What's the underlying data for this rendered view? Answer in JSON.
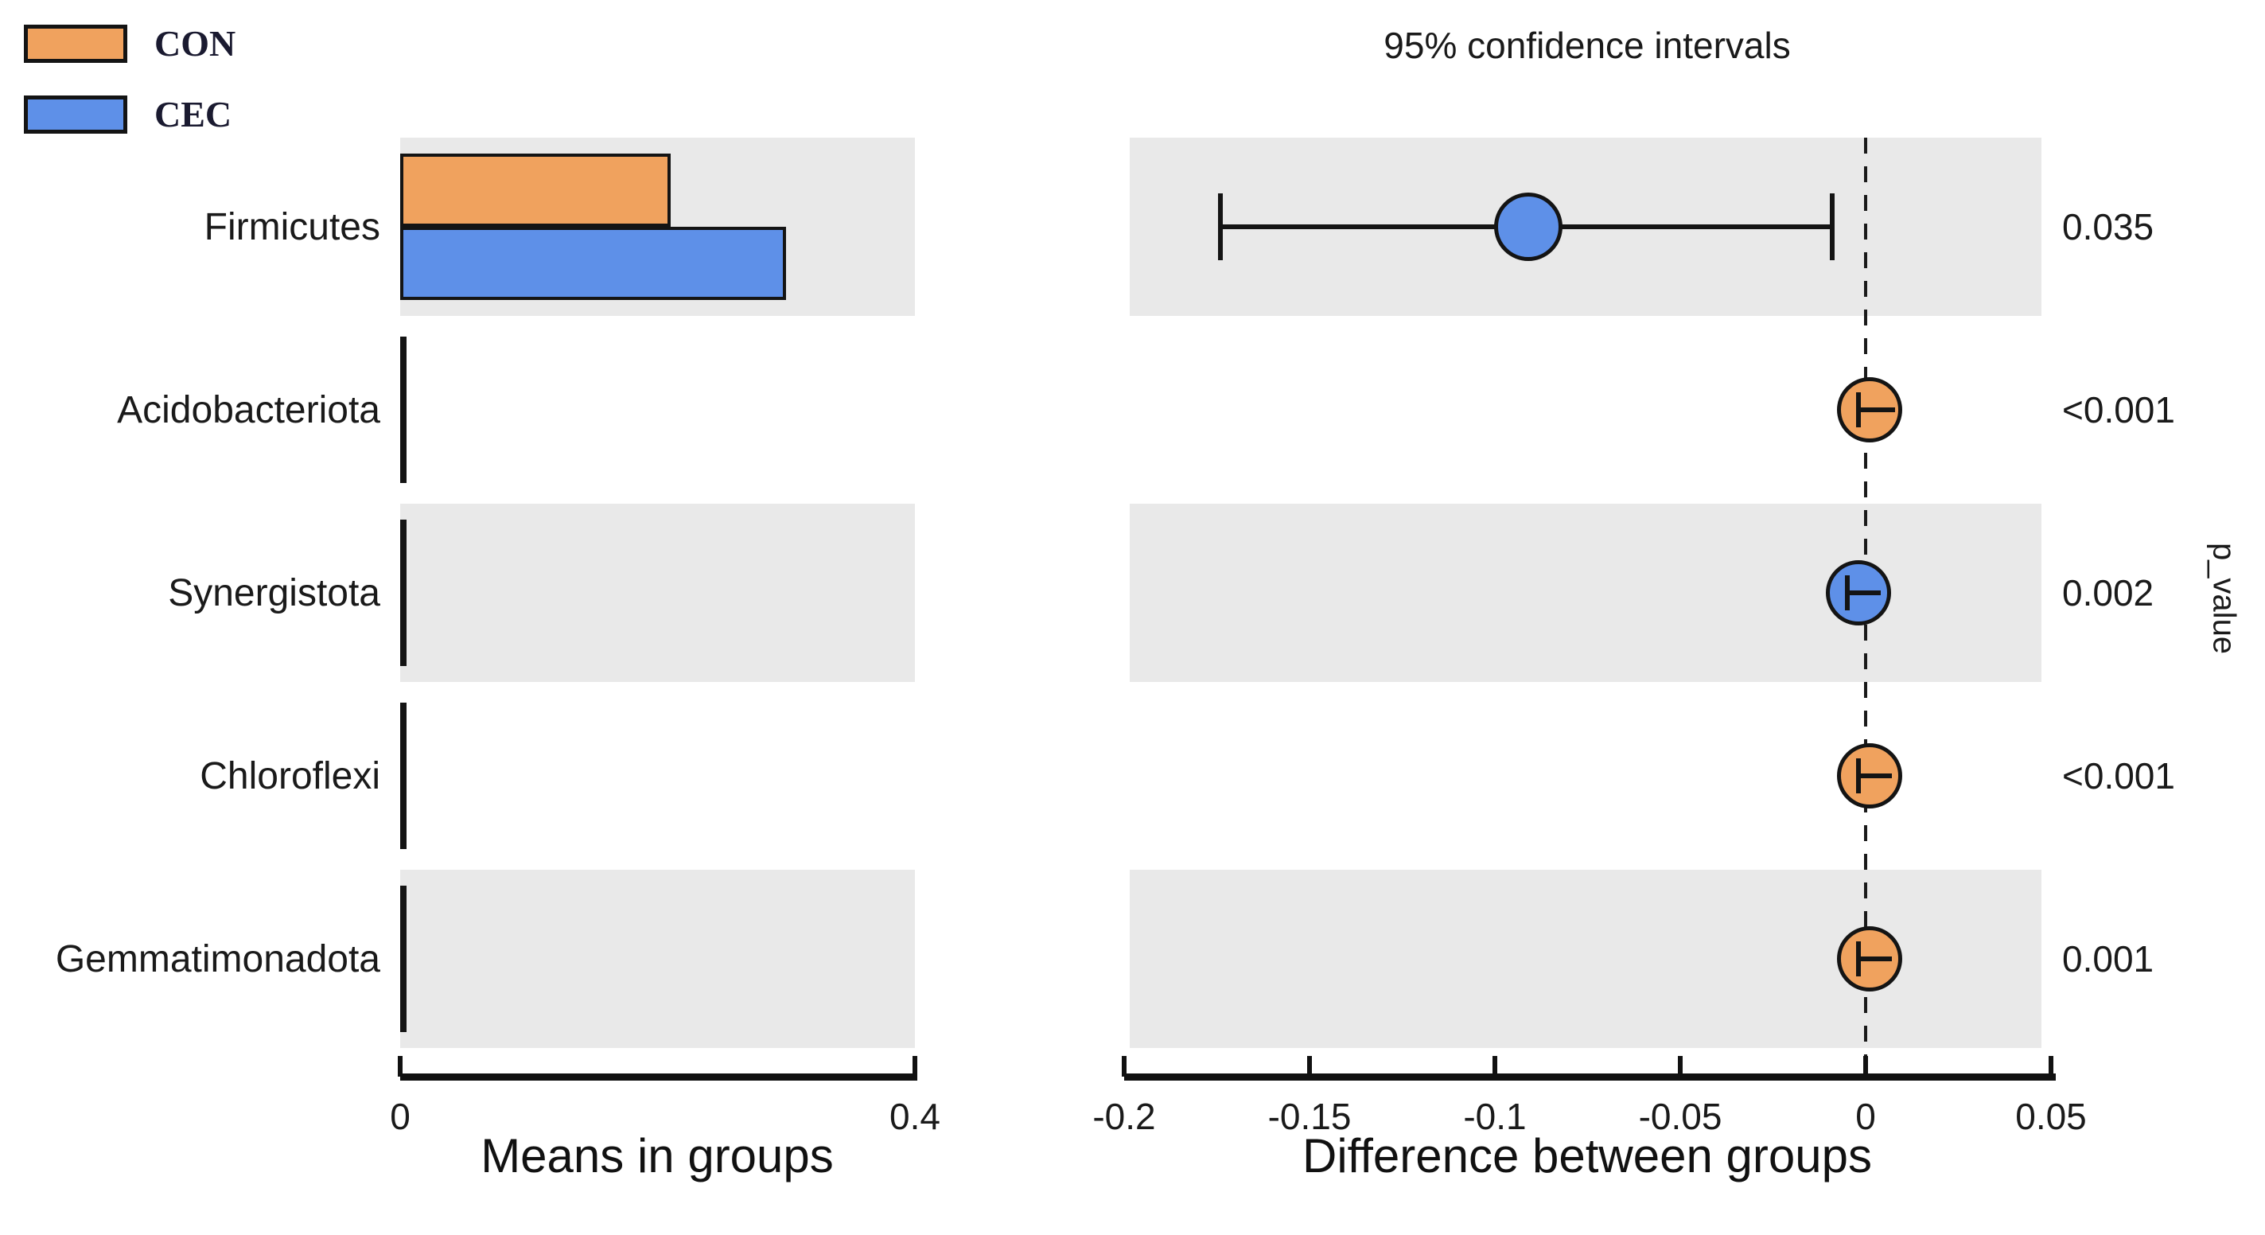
{
  "legend": {
    "items": [
      {
        "label": "CON",
        "color": "#F0A25E"
      },
      {
        "label": "CEC",
        "color": "#5E90E8"
      }
    ]
  },
  "colors": {
    "con_orange": "#F0A25E",
    "cec_blue": "#5E90E8",
    "band_gray": "#E9E9E9",
    "stroke_black": "#141414"
  },
  "chart_data": {
    "type": "extended-error-bar",
    "groups": [
      "CON",
      "CEC"
    ],
    "left_panel": {
      "xlabel": "Means in groups",
      "xlim": [
        0,
        0.4
      ],
      "ticks": [
        {
          "value": 0,
          "label": "0"
        },
        {
          "value": 0.4,
          "label": "0.4"
        }
      ]
    },
    "right_panel": {
      "title": "95% confidence intervals",
      "xlabel": "Difference between groups",
      "xlim": [
        -0.2,
        0.05
      ],
      "zero_line": 0,
      "ticks": [
        {
          "value": -0.2,
          "label": "-0.2"
        },
        {
          "value": -0.15,
          "label": "-0.15"
        },
        {
          "value": -0.1,
          "label": "-0.1"
        },
        {
          "value": -0.05,
          "label": "-0.05"
        },
        {
          "value": 0,
          "label": "0"
        },
        {
          "value": 0.05,
          "label": "0.05"
        }
      ]
    },
    "p_value_label": "p_value",
    "rows": [
      {
        "taxon": "Firmicutes",
        "means": {
          "CON": 0.21,
          "CEC": 0.3
        },
        "difference": -0.091,
        "ci": [
          -0.174,
          -0.009
        ],
        "enriched": "CEC",
        "p_value": "0.035"
      },
      {
        "taxon": "Acidobacteriota",
        "means": {
          "CON": 0.004,
          "CEC": 0.002
        },
        "difference": 0.001,
        "ci": [
          -0.002,
          0.008
        ],
        "enriched": "CON",
        "p_value": "<0.001"
      },
      {
        "taxon": "Synergistota",
        "means": {
          "CON": 0.002,
          "CEC": 0.004
        },
        "difference": -0.002,
        "ci": [
          -0.005,
          0.004
        ],
        "enriched": "CEC",
        "p_value": "0.002"
      },
      {
        "taxon": "Chloroflexi",
        "means": {
          "CON": 0.003,
          "CEC": 0.001
        },
        "difference": 0.001,
        "ci": [
          -0.002,
          0.007
        ],
        "enriched": "CON",
        "p_value": "<0.001"
      },
      {
        "taxon": "Gemmatimonadota",
        "means": {
          "CON": 0.003,
          "CEC": 0.001
        },
        "difference": 0.001,
        "ci": [
          -0.002,
          0.007
        ],
        "enriched": "CON",
        "p_value": "0.001"
      }
    ]
  }
}
